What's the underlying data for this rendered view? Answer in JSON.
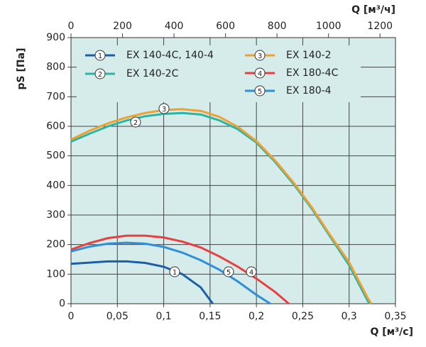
{
  "chart_data": {
    "type": "line",
    "x_label": "Q [м³/с]",
    "x2_label": "Q [м³/ч]",
    "y_label": "pS [Па]",
    "xlim": [
      0,
      0.35
    ],
    "xticks": [
      0,
      {
        "value": 0.05,
        "label": "0,05"
      },
      {
        "value": 0.1,
        "label": "0,1"
      },
      {
        "value": 0.15,
        "label": "0,15"
      },
      {
        "value": 0.2,
        "label": "0,2"
      },
      {
        "value": 0.25,
        "label": "0,25"
      },
      {
        "value": 0.3,
        "label": "0,3"
      },
      {
        "value": 0.35,
        "label": "0,35"
      }
    ],
    "x2lim": [
      0,
      1260
    ],
    "x2ticks": [
      0,
      200,
      400,
      600,
      800,
      1000,
      1200
    ],
    "ylim": [
      0,
      900
    ],
    "yticks": [
      0,
      100,
      200,
      300,
      400,
      500,
      600,
      700,
      800,
      900
    ],
    "grid": true,
    "series": [
      {
        "name": "EX 140-4C, 140-4",
        "marker": "1",
        "color": "#1d5fa6",
        "x": [
          0,
          0.02,
          0.04,
          0.06,
          0.08,
          0.1,
          0.12,
          0.14,
          0.153
        ],
        "values": [
          135,
          139,
          143,
          143,
          138,
          125,
          100,
          55,
          0
        ]
      },
      {
        "name": "EX 140-2C",
        "marker": "2",
        "color": "#2bb5a5",
        "x": [
          0,
          0.02,
          0.04,
          0.06,
          0.08,
          0.1,
          0.12,
          0.14,
          0.16,
          0.18,
          0.2,
          0.22,
          0.24,
          0.26,
          0.28,
          0.3,
          0.32,
          0.322
        ],
        "values": [
          548,
          575,
          600,
          620,
          634,
          642,
          645,
          640,
          620,
          590,
          545,
          480,
          405,
          320,
          225,
          130,
          10,
          0
        ]
      },
      {
        "name": "EX 140-2",
        "marker": "3",
        "color": "#f0a030",
        "x": [
          0,
          0.02,
          0.04,
          0.06,
          0.08,
          0.1,
          0.12,
          0.14,
          0.16,
          0.18,
          0.2,
          0.22,
          0.24,
          0.26,
          0.28,
          0.3,
          0.32,
          0.324
        ],
        "values": [
          555,
          585,
          610,
          630,
          645,
          655,
          658,
          652,
          632,
          598,
          550,
          485,
          410,
          325,
          230,
          140,
          20,
          0
        ]
      },
      {
        "name": "EX 180-4C",
        "marker": "4",
        "color": "#e84040",
        "x": [
          0,
          0.02,
          0.04,
          0.06,
          0.08,
          0.1,
          0.12,
          0.14,
          0.16,
          0.18,
          0.2,
          0.22,
          0.235
        ],
        "values": [
          183,
          205,
          222,
          230,
          230,
          224,
          210,
          190,
          160,
          125,
          85,
          40,
          0
        ]
      },
      {
        "name": "EX 180-4",
        "marker": "5",
        "color": "#2f8fd8",
        "x": [
          0,
          0.02,
          0.04,
          0.06,
          0.08,
          0.1,
          0.12,
          0.14,
          0.16,
          0.18,
          0.2,
          0.215
        ],
        "values": [
          177,
          193,
          203,
          206,
          203,
          192,
          173,
          147,
          115,
          75,
          30,
          0
        ]
      }
    ]
  }
}
